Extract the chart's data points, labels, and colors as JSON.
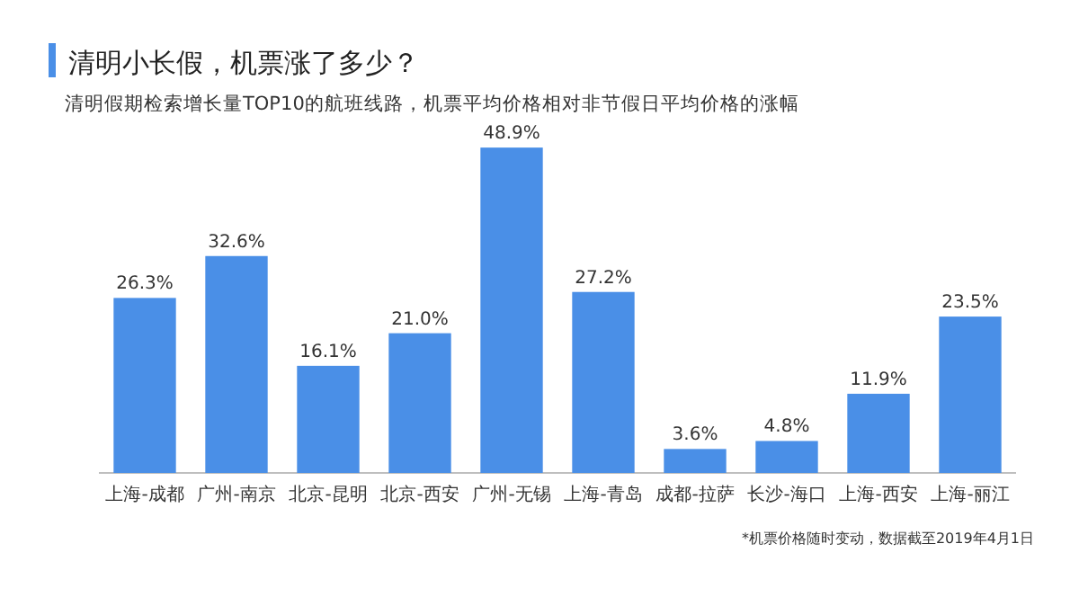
{
  "chart_data": {
    "type": "bar",
    "title": "清明小长假，机票涨了多少？",
    "subtitle": "清明假期检索增长量TOP10的航班线路，机票平均价格相对非节假日平均价格的涨幅",
    "categories": [
      "上海-成都",
      "广州-南京",
      "北京-昆明",
      "北京-西安",
      "广州-无锡",
      "上海-青岛",
      "成都-拉萨",
      "长沙-海口",
      "上海-西安",
      "上海-丽江"
    ],
    "values": [
      26.3,
      32.6,
      16.1,
      21.0,
      48.9,
      27.2,
      3.6,
      4.8,
      11.9,
      23.5
    ],
    "value_labels": [
      "26.3%",
      "32.6%",
      "16.1%",
      "21.0%",
      "48.9%",
      "27.2%",
      "3.6%",
      "4.8%",
      "11.9%",
      "23.5%"
    ],
    "color": "#4a8fe7",
    "tick_labels": "x",
    "annotations": [
      "*机票价格随时变动，数据截至2019年4月1日"
    ]
  }
}
